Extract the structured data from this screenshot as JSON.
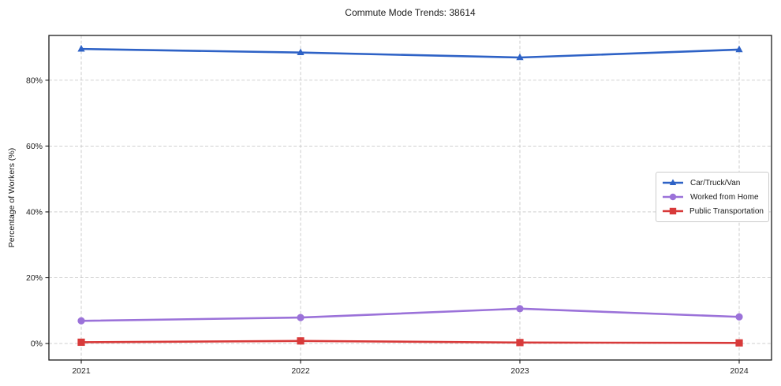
{
  "chart_data": {
    "type": "line",
    "title": "Commute Mode Trends: 38614",
    "xlabel": "",
    "ylabel": "Percentage of Workers (%)",
    "x": [
      "2021",
      "2022",
      "2023",
      "2024"
    ],
    "series": [
      {
        "name": "Car/Truck/Van",
        "color": "#2e62c6",
        "marker": "triangle",
        "values": [
          89.5,
          88.4,
          86.9,
          89.3
        ]
      },
      {
        "name": "Worked from Home",
        "color": "#9b72d9",
        "marker": "circle",
        "values": [
          6.9,
          7.9,
          10.6,
          8.1
        ]
      },
      {
        "name": "Public Transportation",
        "color": "#d83a3a",
        "marker": "square",
        "values": [
          0.4,
          0.8,
          0.3,
          0.2
        ]
      }
    ],
    "yticks": [
      0,
      20,
      40,
      60,
      80
    ],
    "ytick_suffix": "%",
    "ylim": [
      -5,
      93.6
    ],
    "grid": {
      "style": "dashed",
      "color": "#c9c9c9"
    },
    "legend": {
      "position": "right-center",
      "border_color": "#cccccc"
    },
    "axis_color": "#1a1a1a"
  }
}
